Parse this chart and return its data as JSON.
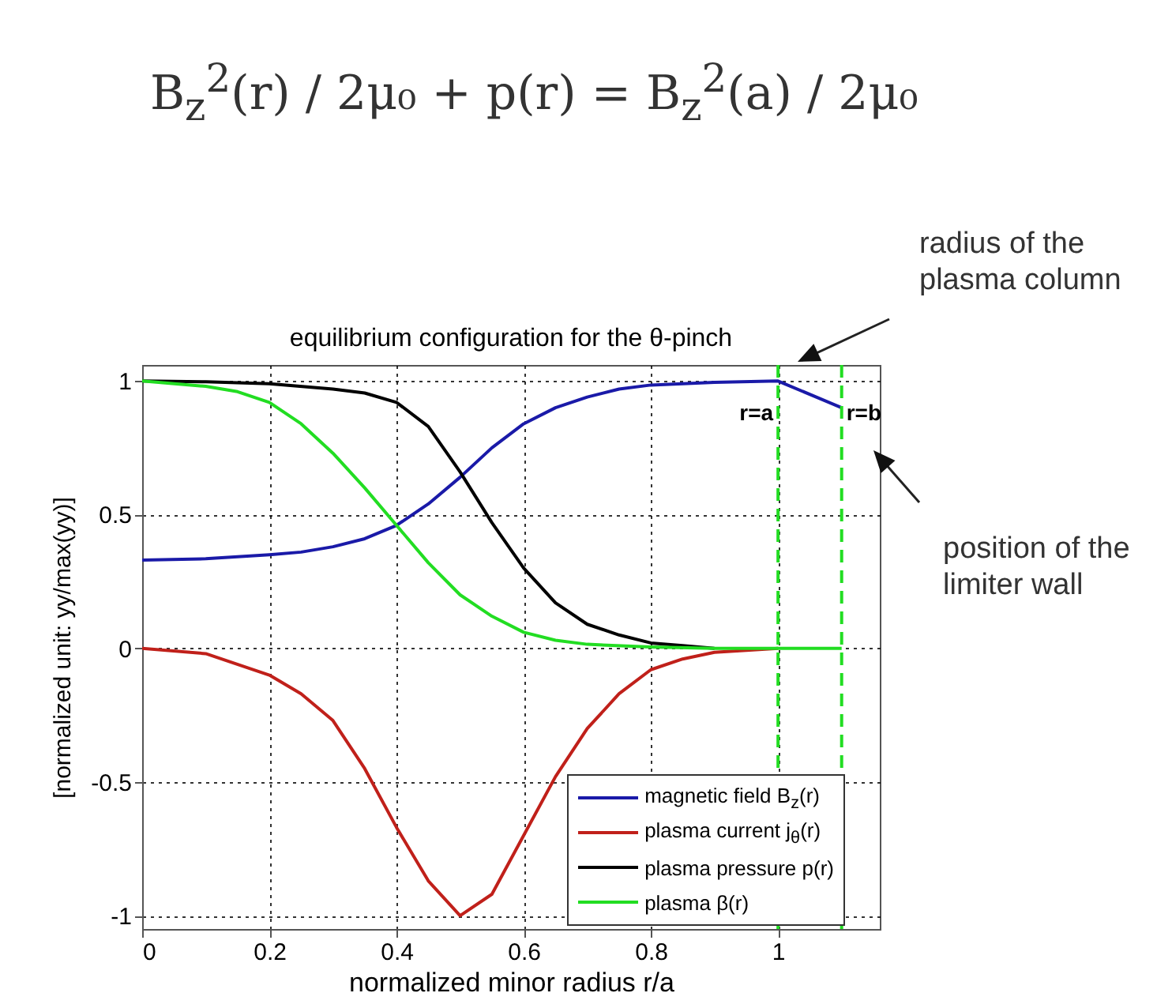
{
  "chart_data": {
    "type": "line",
    "title": "equilibrium configuration for the θ-pinch",
    "xlabel": "normalized minor radius r/a",
    "ylabel": "[normalized unit: yy/max(yy)]",
    "annotations": [
      "B$_{z}$$^{2}$(r) / 2μ₀ + p(r) = B$_{z}$$^{2}$(a) / 2μ₀",
      "radius of the plasma column",
      "position of the limiter wall"
    ],
    "xlim": [
      0,
      1.16
    ],
    "xticks": [
      0,
      0.2,
      0.4,
      0.6,
      0.8,
      1
    ],
    "ylim": [
      -1.05,
      1.06
    ],
    "yticks": [
      -1,
      -0.5,
      0,
      0.5,
      1
    ],
    "grid": true,
    "legend": "bottom right",
    "line_style": "solid",
    "ref_lines": [
      {
        "axis": "x",
        "value": 1,
        "label": "r=a",
        "color": "#22dd22",
        "line_style": "dashed"
      },
      {
        "axis": "x",
        "value": 1.1,
        "label": "r=b",
        "color": "#22dd22",
        "line_style": "dashed"
      }
    ],
    "series": [
      {
        "name": "magnetic field B$_{z}$(r)",
        "color": "#1a1aa8",
        "x": [
          0,
          0.1,
          0.2,
          0.25,
          0.3,
          0.35,
          0.4,
          0.45,
          0.5,
          0.55,
          0.6,
          0.65,
          0.7,
          0.75,
          0.8,
          0.9,
          1.0,
          1.1
        ],
        "values": [
          0.33,
          0.335,
          0.35,
          0.36,
          0.38,
          0.41,
          0.46,
          0.54,
          0.64,
          0.75,
          0.84,
          0.9,
          0.94,
          0.97,
          0.985,
          0.995,
          1.0,
          0.9
        ]
      },
      {
        "name": "plasma current j$_{θ}$(r)",
        "color": "#c0201a",
        "x": [
          0,
          0.1,
          0.2,
          0.25,
          0.3,
          0.35,
          0.4,
          0.45,
          0.5,
          0.55,
          0.6,
          0.65,
          0.7,
          0.75,
          0.8,
          0.85,
          0.9,
          1.0
        ],
        "values": [
          0,
          -0.02,
          -0.1,
          -0.17,
          -0.27,
          -0.45,
          -0.67,
          -0.87,
          -1,
          -0.92,
          -0.7,
          -0.48,
          -0.3,
          -0.17,
          -0.08,
          -0.04,
          -0.015,
          0
        ]
      },
      {
        "name": "plasma pressure p(r)",
        "color": "#000000",
        "x": [
          0,
          0.1,
          0.2,
          0.3,
          0.35,
          0.4,
          0.45,
          0.5,
          0.55,
          0.6,
          0.65,
          0.7,
          0.75,
          0.8,
          0.85,
          0.9
        ],
        "values": [
          1,
          0.997,
          0.99,
          0.97,
          0.955,
          0.92,
          0.83,
          0.66,
          0.47,
          0.3,
          0.17,
          0.09,
          0.05,
          0.02,
          0.01,
          0
        ]
      },
      {
        "name": "plasma β(r)",
        "color": "#22dd22",
        "x": [
          0,
          0.1,
          0.15,
          0.2,
          0.25,
          0.3,
          0.35,
          0.4,
          0.45,
          0.5,
          0.55,
          0.6,
          0.65,
          0.7,
          0.8,
          0.9,
          1.0,
          1.1
        ],
        "values": [
          1,
          0.98,
          0.96,
          0.92,
          0.84,
          0.73,
          0.6,
          0.46,
          0.32,
          0.2,
          0.12,
          0.06,
          0.03,
          0.015,
          0.005,
          0,
          0,
          0
        ]
      }
    ]
  }
}
